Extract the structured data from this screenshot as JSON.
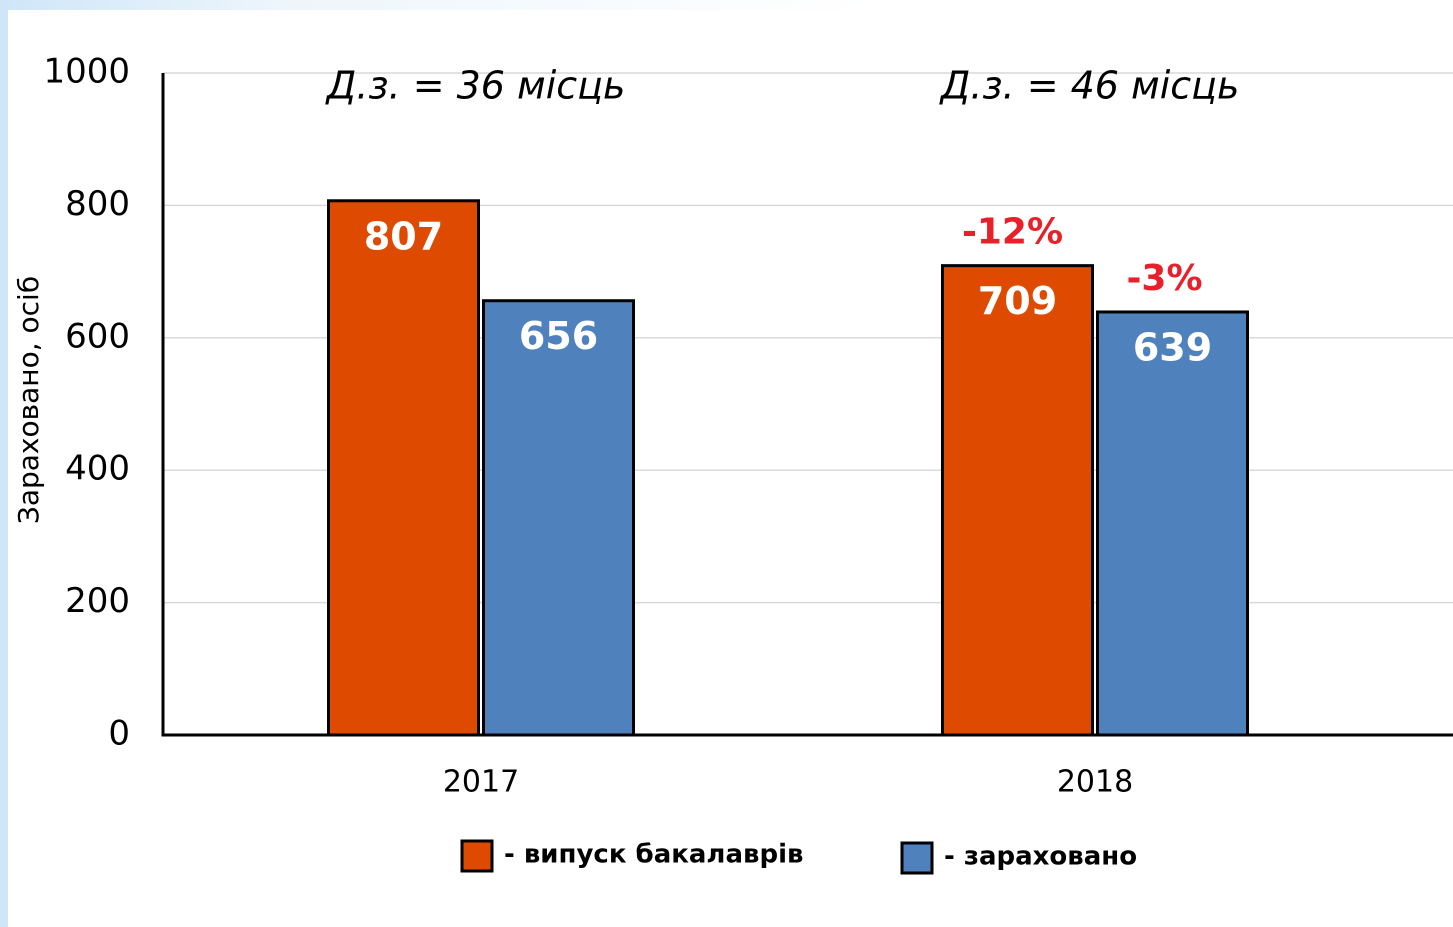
{
  "chart_data": {
    "type": "bar",
    "categories": [
      "2017",
      "2018"
    ],
    "series": [
      {
        "name": "- випуск бакалаврів",
        "color": "#dd4a00",
        "values": [
          807,
          709
        ]
      },
      {
        "name": "- зараховано",
        "color": "#4f81bd",
        "values": [
          656,
          639
        ]
      }
    ],
    "ylabel": "Зараховано, осіб",
    "ylim": [
      0,
      1000
    ],
    "yticks": [
      0,
      200,
      400,
      600,
      800,
      1000
    ],
    "grid": true,
    "legend": "bottom",
    "annotations": [
      "Д.з. = 36 місць",
      "Д.з. = 46 місць"
    ],
    "change_labels": [
      null,
      "-12%"
    ],
    "change_labels_2": [
      null,
      "-3%"
    ],
    "change_color": "#e8202a"
  }
}
